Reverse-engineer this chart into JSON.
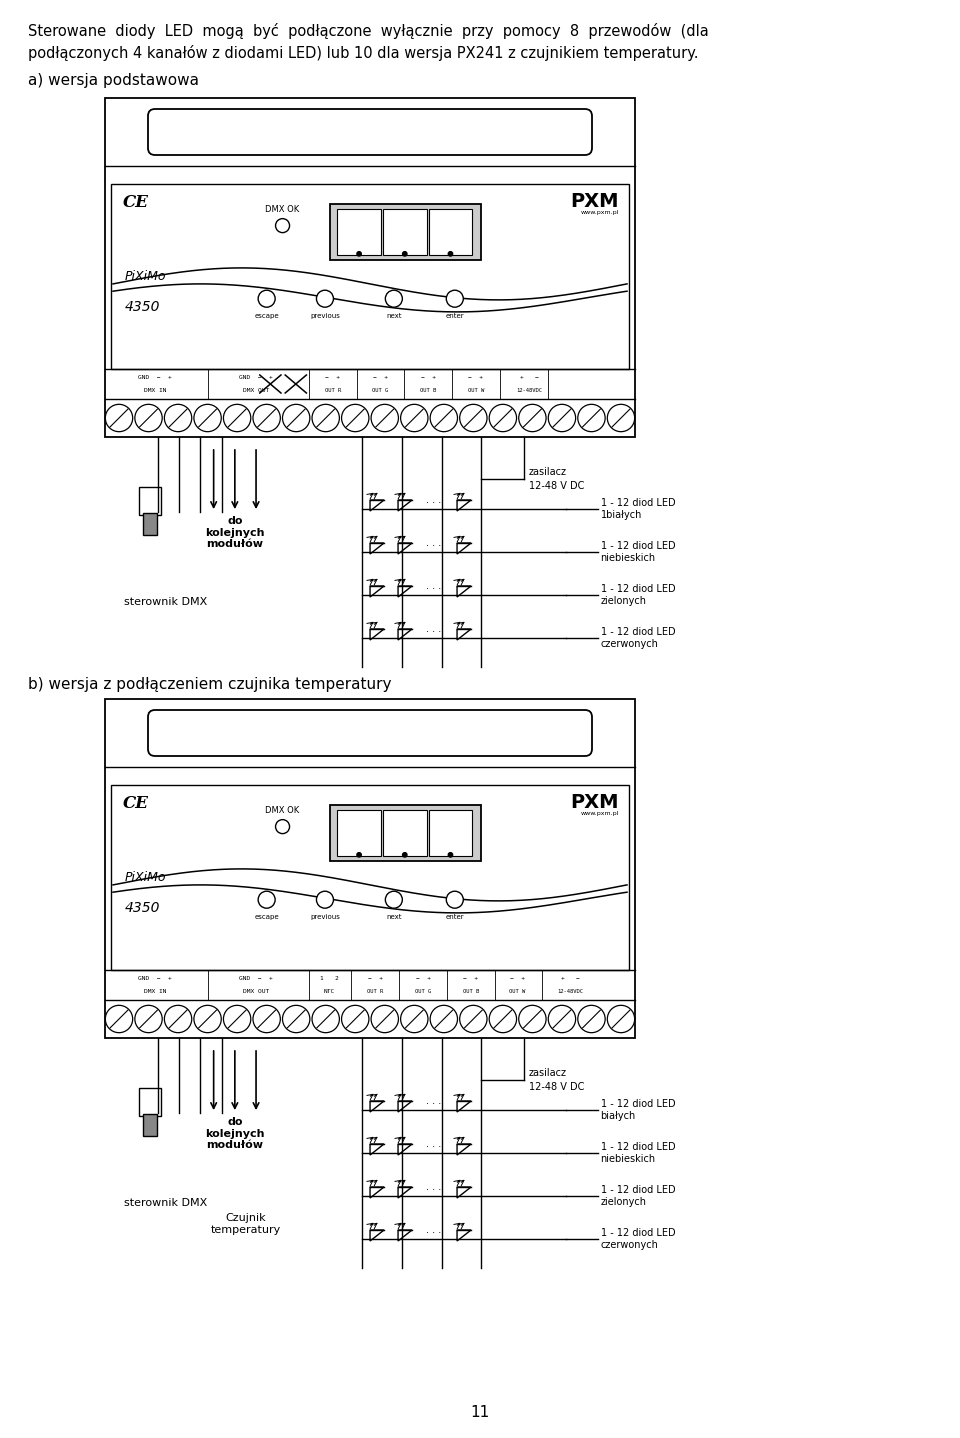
{
  "title_line1": "Sterowane  diody  LED  mogą  być  podłączone  wyłącznie  przy  pomocy  8  przewodów  (dla",
  "title_line2": "podłączonych 4 kanałów z diodami LED) lub 10 dla wersja PX241 z czujnikiem temperatury.",
  "section_a": "a) wersja podstawowa",
  "section_b": "b) wersja z podłączeniem czujnika temperatury",
  "page_number": "11",
  "zasilacz_line1": "zasilacz",
  "zasilacz_line2": "12-48 V DC",
  "do_kolejnych": "do\nkolejnych\nmodułów",
  "sterownik_dmx": "sterownik DMX",
  "czujnik_temp": "Czujnik\ntemperatury",
  "led_labels_a": [
    "1 - 12 diod LED\n1białych",
    "1 - 12 diod LED\nniebieskich",
    "1 - 12 diod LED\nzielonych",
    "1 - 12 diod LED\nczerwonych"
  ],
  "led_labels_b": [
    "1 - 12 diod LED\nbiałych",
    "1 - 12 diod LED\nniebieskich",
    "1 - 12 diod LED\nzielonych",
    "1 - 12 diod LED\nczerwonych"
  ],
  "dmx_ok": "DMX OK",
  "pixmo_1": "PiXiMo",
  "pixmo_2": "4350",
  "btn_labels": [
    "escape",
    "previous",
    "next",
    "enter"
  ],
  "pxm": "PXM",
  "pxm_url": "www.pxm.pl",
  "ce": "CE",
  "term_row1_a": "GND  −  +   GND  −  +",
  "term_row2_a": "DMX IN        DMX OUT",
  "term_mid_a": "╳  ╳",
  "term_right_a": "−  +    −  +    −  +    −  +     +   −",
  "term_right2_a": "OUT R     OUT G    OUT B    OUT W  12-48VDC",
  "term_row1_b": "GND  −  +   GND  −  +   1   2",
  "term_row2_b": "DMX IN        DMX OUT      NTC",
  "term_right_b": "−  +    −  +    −  +    −  +     +   −",
  "term_right2_b": "OUT R     OUT G    OUT B    OUT W  12-48VDC",
  "bg_color": "#ffffff",
  "lc": "#000000"
}
